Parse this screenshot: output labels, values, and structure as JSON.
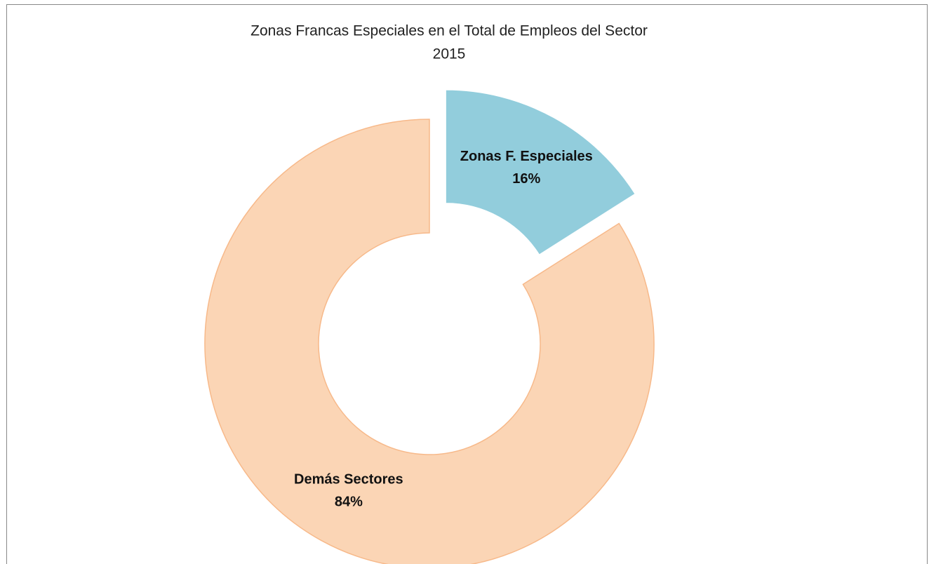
{
  "chart_data": {
    "type": "donut",
    "title": "Zonas Francas Especiales en el Total  de Empleos del Sector",
    "subtitle": "2015",
    "categories": [
      "Zonas F. Especiales",
      "Demás Sectores"
    ],
    "values": [
      16,
      84
    ],
    "value_labels": [
      "16%",
      "84%"
    ],
    "colors": [
      "#92cddc",
      "#fbd5b5"
    ],
    "explode": [
      true,
      false
    ]
  }
}
